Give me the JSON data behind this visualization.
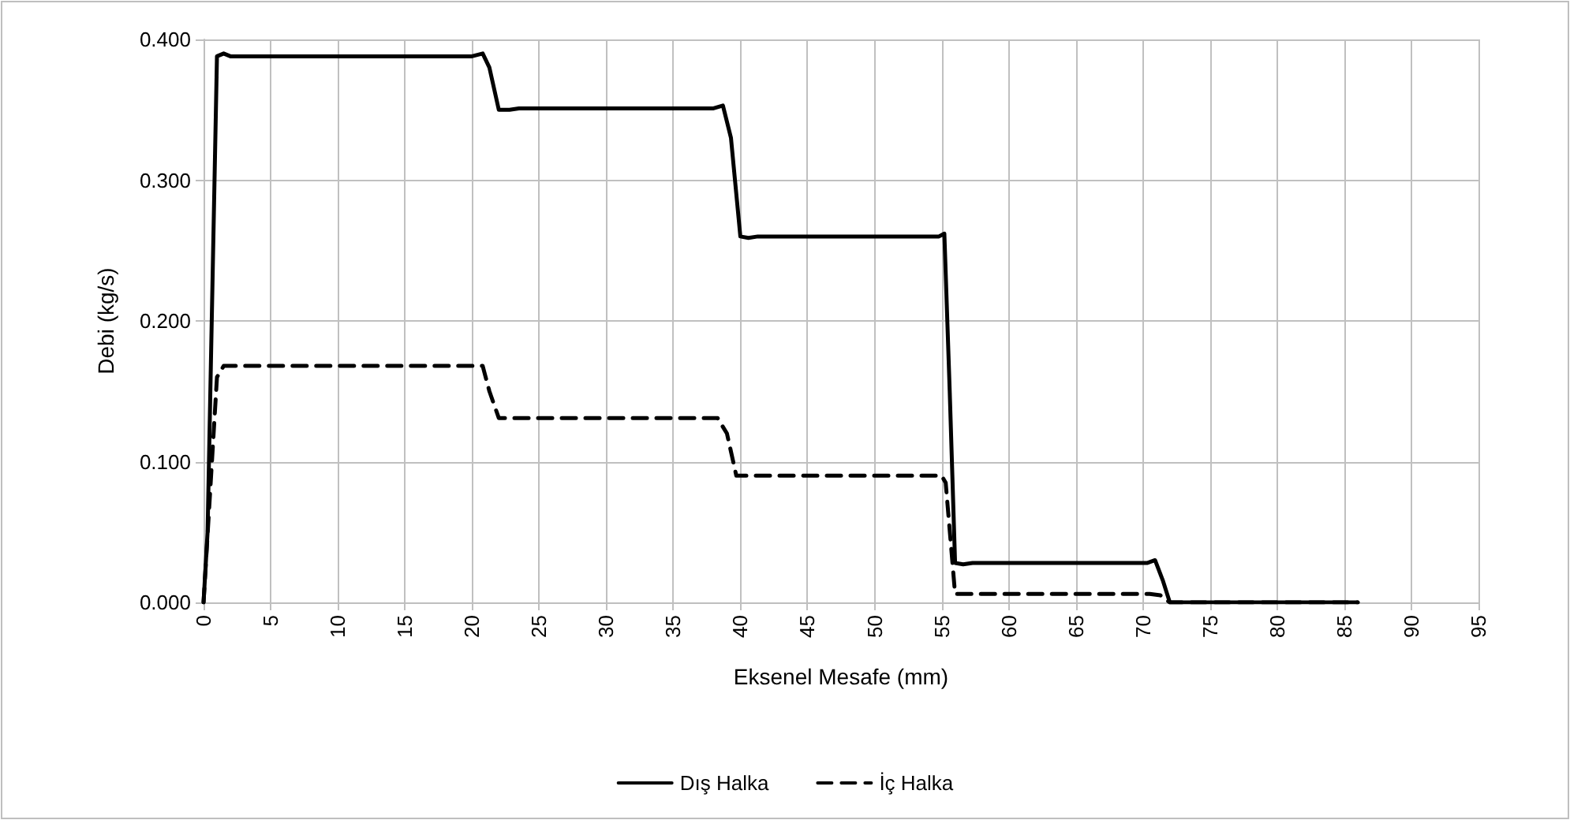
{
  "chart_data": {
    "type": "line",
    "xlabel": "Eksenel Mesafe (mm)",
    "ylabel": "Debi (kg/s)",
    "xlim": [
      0,
      95
    ],
    "xticks": [
      0,
      5,
      10,
      15,
      20,
      25,
      30,
      35,
      40,
      45,
      50,
      55,
      60,
      65,
      70,
      75,
      80,
      85,
      90,
      95
    ],
    "ylim": [
      0,
      0.4
    ],
    "yticks": [
      {
        "value": 0,
        "label": "0.000"
      },
      {
        "value": 0.1,
        "label": "0.100"
      },
      {
        "value": 0.2,
        "label": "0.200"
      },
      {
        "value": 0.3,
        "label": "0.300"
      },
      {
        "value": 0.4,
        "label": "0.400"
      }
    ],
    "grid": true,
    "legend": "bottom",
    "marker": "none",
    "series": [
      {
        "name": "Dış Halka",
        "color": "#000000",
        "line_style": "solid",
        "x": [
          0,
          0.3,
          1,
          1.5,
          2,
          20,
          20.8,
          21.3,
          22,
          22.8,
          23.5,
          38,
          38.7,
          39.3,
          40,
          40.6,
          41.3,
          54.8,
          55.2,
          55.6,
          56,
          56.6,
          57.3,
          70.3,
          70.9,
          71.5,
          72,
          86
        ],
        "values": [
          0,
          0.05,
          0.388,
          0.39,
          0.388,
          0.388,
          0.39,
          0.38,
          0.35,
          0.35,
          0.351,
          0.351,
          0.353,
          0.33,
          0.26,
          0.259,
          0.26,
          0.26,
          0.262,
          0.15,
          0.028,
          0.027,
          0.028,
          0.028,
          0.03,
          0.015,
          0,
          0
        ]
      },
      {
        "name": "İç Halka",
        "color": "#000000",
        "line_style": "dashed",
        "x": [
          0,
          0.5,
          1,
          1.5,
          20.8,
          21.3,
          22,
          38.3,
          39,
          39.7,
          55,
          55.3,
          56,
          70.5,
          71.3,
          72,
          86
        ],
        "values": [
          0,
          0.08,
          0.16,
          0.168,
          0.168,
          0.15,
          0.131,
          0.131,
          0.12,
          0.09,
          0.09,
          0.085,
          0.006,
          0.006,
          0.005,
          0,
          0
        ]
      }
    ]
  }
}
